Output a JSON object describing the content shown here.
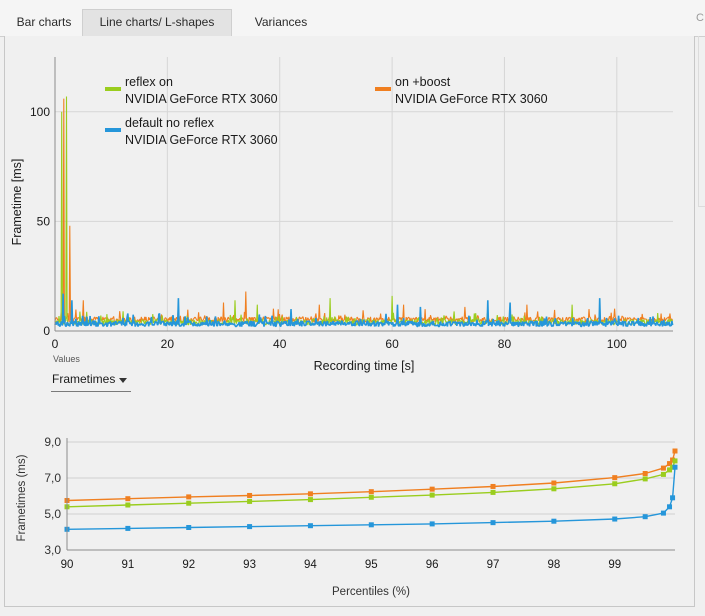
{
  "tabs": [
    {
      "label": "Bar charts",
      "active": false
    },
    {
      "label": "Line charts/ L-shapes",
      "active": true
    },
    {
      "label": "Variances",
      "active": false
    }
  ],
  "side_letter": "C",
  "values_selector": {
    "label": "Values",
    "selected": "Frametimes"
  },
  "colors": {
    "green": "#9ACD1E",
    "orange": "#F07F20",
    "blue": "#2596DA"
  },
  "chart_data": [
    {
      "type": "line",
      "title": "",
      "xlabel": "Recording time [s]",
      "ylabel": "Frametime [ms]",
      "xlim": [
        0,
        110
      ],
      "ylim": [
        0,
        125
      ],
      "xticks": [
        "0",
        "20",
        "40",
        "60",
        "80",
        "100"
      ],
      "yticks": [
        "0",
        "50",
        "100"
      ],
      "grid": true,
      "legend_position": "top",
      "series": [
        {
          "name": "reflex on",
          "sub": "NVIDIA GeForce RTX 3060",
          "color": "#9ACD1E",
          "baseline": 4.0,
          "spikes": [
            [
              1.2,
              100
            ],
            [
              2.1,
              107
            ],
            [
              32,
              14
            ],
            [
              36,
              12
            ],
            [
              49,
              15
            ],
            [
              60,
              16
            ],
            [
              92,
              12
            ]
          ]
        },
        {
          "name": "on +boost",
          "sub": "NVIDIA GeForce RTX 3060",
          "color": "#F07F20",
          "baseline": 5.2,
          "spikes": [
            [
              1.6,
              106
            ],
            [
              2.6,
              48
            ],
            [
              5,
              14
            ],
            [
              22,
              12
            ],
            [
              30,
              13
            ],
            [
              34,
              18
            ],
            [
              47,
              12
            ],
            [
              62,
              12
            ],
            [
              73,
              11
            ],
            [
              84,
              12
            ],
            [
              95,
              10
            ]
          ]
        },
        {
          "name": "default no reflex",
          "sub": "NVIDIA GeForce RTX 3060",
          "color": "#2596DA",
          "baseline": 3.3,
          "spikes": [
            [
              0.3,
              100
            ],
            [
              1.5,
              17
            ],
            [
              3,
              14
            ],
            [
              13,
              8
            ],
            [
              22,
              15
            ],
            [
              42,
              10
            ],
            [
              61,
              12
            ],
            [
              65,
              11
            ],
            [
              77,
              14
            ],
            [
              81,
              13
            ],
            [
              97,
              15
            ]
          ]
        }
      ]
    },
    {
      "type": "line",
      "title": "",
      "xlabel": "Percentiles (%)",
      "ylabel": "Frametimes (ms)",
      "xticks": [
        "90",
        "91",
        "92",
        "93",
        "94",
        "95",
        "96",
        "97",
        "98",
        "99"
      ],
      "yticks": [
        "3,0",
        "5,0",
        "7,0",
        "9,0"
      ],
      "ylim": [
        3.0,
        9.0
      ],
      "grid": true,
      "x": [
        90,
        91,
        92,
        93,
        94,
        95,
        96,
        97,
        98,
        99,
        99.5,
        99.8,
        99.9,
        99.95,
        99.99
      ],
      "series": [
        {
          "name": "on +boost",
          "color": "#F07F20",
          "values": [
            5.75,
            5.85,
            5.95,
            6.03,
            6.12,
            6.24,
            6.38,
            6.53,
            6.72,
            7.02,
            7.25,
            7.55,
            7.8,
            8.0,
            8.5
          ]
        },
        {
          "name": "reflex on",
          "color": "#9ACD1E",
          "values": [
            5.4,
            5.5,
            5.6,
            5.7,
            5.8,
            5.93,
            6.05,
            6.2,
            6.4,
            6.68,
            6.95,
            7.2,
            7.45,
            7.6,
            7.95
          ]
        },
        {
          "name": "default no reflex",
          "color": "#2596DA",
          "values": [
            4.15,
            4.2,
            4.25,
            4.3,
            4.35,
            4.4,
            4.45,
            4.52,
            4.6,
            4.72,
            4.85,
            5.05,
            5.4,
            5.9,
            7.6
          ]
        }
      ]
    }
  ]
}
